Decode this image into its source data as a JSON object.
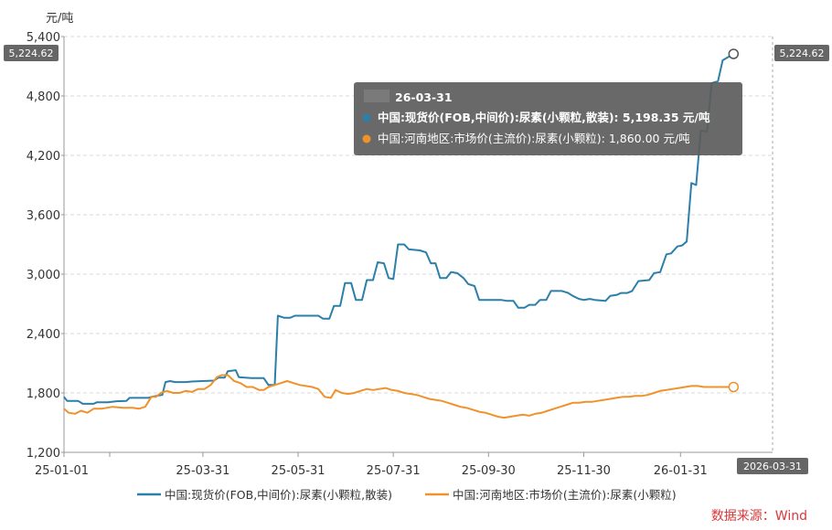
{
  "chart_data": {
    "type": "line",
    "y_unit": "元/吨",
    "ylim": [
      1200,
      5400
    ],
    "y_ticks": [
      "1,200",
      "1,800",
      "2,400",
      "3,000",
      "3,600",
      "4,200",
      "4,800",
      "5,400"
    ],
    "x_ticks": [
      "25-01-01",
      "25-03-31",
      "25-05-31",
      "25-07-31",
      "25-09-30",
      "25-11-30",
      "26-01-31"
    ],
    "x_range": [
      "2025-01-01",
      "2026-03-31"
    ],
    "grid": true,
    "legend_position": "bottom",
    "series": [
      {
        "name": "中国:现货价(FOB,中间价):尿素(小颗粒,散装)",
        "color": "#2c7fa8",
        "points": [
          [
            "2025-01-01",
            1760
          ],
          [
            "2025-01-03",
            1720
          ],
          [
            "2025-01-10",
            1720
          ],
          [
            "2025-01-13",
            1690
          ],
          [
            "2025-01-20",
            1690
          ],
          [
            "2025-01-22",
            1705
          ],
          [
            "2025-01-29",
            1705
          ],
          [
            "2025-02-03",
            1715
          ],
          [
            "2025-02-10",
            1720
          ],
          [
            "2025-02-12",
            1750
          ],
          [
            "2025-02-24",
            1750
          ],
          [
            "2025-02-26",
            1760
          ],
          [
            "2025-03-01",
            1770
          ],
          [
            "2025-03-05",
            1780
          ],
          [
            "2025-03-07",
            1910
          ],
          [
            "2025-03-10",
            1920
          ],
          [
            "2025-03-13",
            1910
          ],
          [
            "2025-03-20",
            1910
          ],
          [
            "2025-03-24",
            1915
          ],
          [
            "2025-03-31",
            1920
          ],
          [
            "2025-04-07",
            1925
          ],
          [
            "2025-04-10",
            1955
          ],
          [
            "2025-04-14",
            1955
          ],
          [
            "2025-04-16",
            2020
          ],
          [
            "2025-04-21",
            2030
          ],
          [
            "2025-04-23",
            1960
          ],
          [
            "2025-05-01",
            1950
          ],
          [
            "2025-05-09",
            1950
          ],
          [
            "2025-05-12",
            1880
          ],
          [
            "2025-05-16",
            1880
          ],
          [
            "2025-05-18",
            2580
          ],
          [
            "2025-05-22",
            2560
          ],
          [
            "2025-05-26",
            2560
          ],
          [
            "2025-05-29",
            2580
          ],
          [
            "2025-06-05",
            2580
          ],
          [
            "2025-06-13",
            2580
          ],
          [
            "2025-06-16",
            2550
          ],
          [
            "2025-06-20",
            2550
          ],
          [
            "2025-06-23",
            2680
          ],
          [
            "2025-06-27",
            2680
          ],
          [
            "2025-06-30",
            2910
          ],
          [
            "2025-07-04",
            2910
          ],
          [
            "2025-07-07",
            2740
          ],
          [
            "2025-07-11",
            2740
          ],
          [
            "2025-07-14",
            2940
          ],
          [
            "2025-07-18",
            2940
          ],
          [
            "2025-07-21",
            3120
          ],
          [
            "2025-07-25",
            3110
          ],
          [
            "2025-07-28",
            2960
          ],
          [
            "2025-07-31",
            2950
          ],
          [
            "2025-08-03",
            3300
          ],
          [
            "2025-08-07",
            3300
          ],
          [
            "2025-08-10",
            3250
          ],
          [
            "2025-08-17",
            3240
          ],
          [
            "2025-08-21",
            3220
          ],
          [
            "2025-08-24",
            3110
          ],
          [
            "2025-08-27",
            3110
          ],
          [
            "2025-08-30",
            2960
          ],
          [
            "2025-09-03",
            2960
          ],
          [
            "2025-09-06",
            3020
          ],
          [
            "2025-09-10",
            3010
          ],
          [
            "2025-09-14",
            2960
          ],
          [
            "2025-09-17",
            2900
          ],
          [
            "2025-09-21",
            2880
          ],
          [
            "2025-09-24",
            2740
          ],
          [
            "2025-10-08",
            2740
          ],
          [
            "2025-10-12",
            2730
          ],
          [
            "2025-10-16",
            2730
          ],
          [
            "2025-10-19",
            2660
          ],
          [
            "2025-10-23",
            2660
          ],
          [
            "2025-10-26",
            2690
          ],
          [
            "2025-10-30",
            2690
          ],
          [
            "2025-11-02",
            2740
          ],
          [
            "2025-11-06",
            2740
          ],
          [
            "2025-11-09",
            2830
          ],
          [
            "2025-11-16",
            2830
          ],
          [
            "2025-11-20",
            2810
          ],
          [
            "2025-11-23",
            2780
          ],
          [
            "2025-11-27",
            2750
          ],
          [
            "2025-11-30",
            2740
          ],
          [
            "2025-12-04",
            2750
          ],
          [
            "2025-12-07",
            2740
          ],
          [
            "2025-12-14",
            2730
          ],
          [
            "2025-12-17",
            2780
          ],
          [
            "2025-12-21",
            2790
          ],
          [
            "2025-12-24",
            2810
          ],
          [
            "2025-12-28",
            2810
          ],
          [
            "2025-12-31",
            2830
          ],
          [
            "2026-01-04",
            2930
          ],
          [
            "2026-01-11",
            2940
          ],
          [
            "2026-01-14",
            3010
          ],
          [
            "2026-01-18",
            3020
          ],
          [
            "2026-01-22",
            3200
          ],
          [
            "2026-01-25",
            3210
          ],
          [
            "2026-01-29",
            3280
          ],
          [
            "2026-02-01",
            3290
          ],
          [
            "2026-02-04",
            3330
          ],
          [
            "2026-02-07",
            3920
          ],
          [
            "2026-02-10",
            3900
          ],
          [
            "2026-02-13",
            4450
          ],
          [
            "2026-02-17",
            4440
          ],
          [
            "2026-02-20",
            4930
          ],
          [
            "2026-02-24",
            4950
          ],
          [
            "2026-02-27",
            5160
          ],
          [
            "2026-03-06",
            5224.62
          ]
        ]
      },
      {
        "name": "中国:河南地区:市场价(主流价):尿素(小颗粒)",
        "color": "#f0922b",
        "points": [
          [
            "2025-01-01",
            1640
          ],
          [
            "2025-01-04",
            1600
          ],
          [
            "2025-01-08",
            1590
          ],
          [
            "2025-01-12",
            1620
          ],
          [
            "2025-01-16",
            1600
          ],
          [
            "2025-01-20",
            1640
          ],
          [
            "2025-01-25",
            1640
          ],
          [
            "2025-02-01",
            1660
          ],
          [
            "2025-02-08",
            1650
          ],
          [
            "2025-02-14",
            1650
          ],
          [
            "2025-02-18",
            1640
          ],
          [
            "2025-02-22",
            1660
          ],
          [
            "2025-02-26",
            1760
          ],
          [
            "2025-03-01",
            1760
          ],
          [
            "2025-03-04",
            1800
          ],
          [
            "2025-03-08",
            1820
          ],
          [
            "2025-03-12",
            1800
          ],
          [
            "2025-03-16",
            1800
          ],
          [
            "2025-03-20",
            1820
          ],
          [
            "2025-03-24",
            1810
          ],
          [
            "2025-03-28",
            1840
          ],
          [
            "2025-04-01",
            1840
          ],
          [
            "2025-04-05",
            1880
          ],
          [
            "2025-04-09",
            1960
          ],
          [
            "2025-04-12",
            1980
          ],
          [
            "2025-04-16",
            1980
          ],
          [
            "2025-04-20",
            1920
          ],
          [
            "2025-04-24",
            1900
          ],
          [
            "2025-04-28",
            1860
          ],
          [
            "2025-05-02",
            1860
          ],
          [
            "2025-05-06",
            1830
          ],
          [
            "2025-05-09",
            1830
          ],
          [
            "2025-05-12",
            1860
          ],
          [
            "2025-05-16",
            1880
          ],
          [
            "2025-05-20",
            1900
          ],
          [
            "2025-05-24",
            1920
          ],
          [
            "2025-05-28",
            1900
          ],
          [
            "2025-06-01",
            1880
          ],
          [
            "2025-06-05",
            1870
          ],
          [
            "2025-06-09",
            1860
          ],
          [
            "2025-06-13",
            1840
          ],
          [
            "2025-06-17",
            1760
          ],
          [
            "2025-06-21",
            1750
          ],
          [
            "2025-06-24",
            1830
          ],
          [
            "2025-06-28",
            1800
          ],
          [
            "2025-07-02",
            1790
          ],
          [
            "2025-07-06",
            1800
          ],
          [
            "2025-07-10",
            1820
          ],
          [
            "2025-07-14",
            1840
          ],
          [
            "2025-07-18",
            1830
          ],
          [
            "2025-07-22",
            1840
          ],
          [
            "2025-07-26",
            1850
          ],
          [
            "2025-07-30",
            1830
          ],
          [
            "2025-08-03",
            1820
          ],
          [
            "2025-08-07",
            1800
          ],
          [
            "2025-08-11",
            1790
          ],
          [
            "2025-08-15",
            1780
          ],
          [
            "2025-08-19",
            1760
          ],
          [
            "2025-08-23",
            1740
          ],
          [
            "2025-08-27",
            1730
          ],
          [
            "2025-08-31",
            1720
          ],
          [
            "2025-09-04",
            1700
          ],
          [
            "2025-09-08",
            1680
          ],
          [
            "2025-09-12",
            1660
          ],
          [
            "2025-09-16",
            1650
          ],
          [
            "2025-09-20",
            1630
          ],
          [
            "2025-09-24",
            1610
          ],
          [
            "2025-09-28",
            1600
          ],
          [
            "2025-10-02",
            1580
          ],
          [
            "2025-10-06",
            1560
          ],
          [
            "2025-10-10",
            1550
          ],
          [
            "2025-10-14",
            1560
          ],
          [
            "2025-10-18",
            1570
          ],
          [
            "2025-10-22",
            1580
          ],
          [
            "2025-10-26",
            1570
          ],
          [
            "2025-10-30",
            1590
          ],
          [
            "2025-11-03",
            1600
          ],
          [
            "2025-11-07",
            1620
          ],
          [
            "2025-11-11",
            1640
          ],
          [
            "2025-11-15",
            1660
          ],
          [
            "2025-11-19",
            1680
          ],
          [
            "2025-11-23",
            1700
          ],
          [
            "2025-11-27",
            1700
          ],
          [
            "2025-12-01",
            1710
          ],
          [
            "2025-12-05",
            1710
          ],
          [
            "2025-12-09",
            1720
          ],
          [
            "2025-12-13",
            1730
          ],
          [
            "2025-12-17",
            1740
          ],
          [
            "2025-12-21",
            1750
          ],
          [
            "2025-12-25",
            1760
          ],
          [
            "2025-12-29",
            1760
          ],
          [
            "2026-01-02",
            1770
          ],
          [
            "2026-01-06",
            1770
          ],
          [
            "2026-01-10",
            1780
          ],
          [
            "2026-01-14",
            1800
          ],
          [
            "2026-01-18",
            1820
          ],
          [
            "2026-01-22",
            1830
          ],
          [
            "2026-01-26",
            1840
          ],
          [
            "2026-01-30",
            1850
          ],
          [
            "2026-02-03",
            1860
          ],
          [
            "2026-02-07",
            1870
          ],
          [
            "2026-02-11",
            1870
          ],
          [
            "2026-02-15",
            1860
          ],
          [
            "2026-02-19",
            1860
          ],
          [
            "2026-02-23",
            1860
          ],
          [
            "2026-02-27",
            1860
          ],
          [
            "2026-03-06",
            1860
          ]
        ]
      }
    ],
    "last_value_badge": "5,224.62",
    "crosshair_date_label": "2026-03-31",
    "tooltip": {
      "title": "26-03-31",
      "rows": [
        "中国:现货价(FOB,中间价):尿素(小颗粒,散装): 5,198.35  元/吨",
        "中国:河南地区:市场价(主流价):尿素(小颗粒): 1,860.00  元/吨"
      ]
    },
    "source": "数据来源：Wind"
  }
}
